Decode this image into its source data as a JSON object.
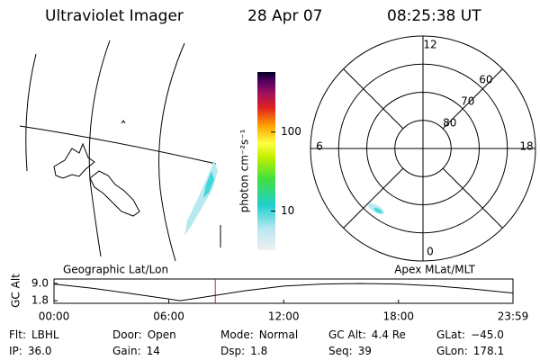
{
  "header": {
    "title": "Ultraviolet Imager",
    "date": "28 Apr 07",
    "time": "08:25:38 UT"
  },
  "colorbar": {
    "label": "photon cm⁻²s⁻¹",
    "scale": "log",
    "lim": [
      3.2,
      575
    ],
    "ticks": [
      10,
      100
    ]
  },
  "polar": {
    "lat_lim": [
      50,
      90
    ],
    "lat_rings": [
      60,
      70,
      80
    ],
    "mlt_labels": [
      0,
      6,
      12,
      18
    ]
  },
  "altitude": {
    "title_left": "Geographic Lat/Lon",
    "title_right": "Apex MLat/MLT",
    "ylabel": "GC Alt",
    "x": [
      0,
      2,
      4,
      6,
      6.6,
      8,
      10,
      12,
      14,
      16,
      18,
      20,
      22,
      23.98
    ],
    "values": [
      8.8,
      7.0,
      4.8,
      2.5,
      1.8,
      3.5,
      6.0,
      7.9,
      8.8,
      9.0,
      8.8,
      8.0,
      6.6,
      5.0
    ],
    "xlim": [
      0,
      23.983
    ],
    "ylim": [
      0.7,
      10.9
    ],
    "yticks": [
      1.8,
      {
        "value": 9,
        "label": "9.0"
      }
    ],
    "xticks": [
      {
        "value": 0,
        "label": "00:00"
      },
      {
        "value": 6,
        "label": "06:00"
      },
      {
        "value": 12,
        "label": "12:00"
      },
      {
        "value": 18,
        "label": "18:00"
      },
      {
        "value": 23.983,
        "label": "23:59"
      }
    ],
    "marker": 8.4272,
    "line_color": "#000000",
    "marker_color": "#cc2222"
  },
  "footer": [
    {
      "label": "Flt:",
      "value": "LBHL"
    },
    {
      "label": "Door:",
      "value": "Open"
    },
    {
      "label": "Mode:",
      "value": "Normal"
    },
    {
      "label": "GC Alt:",
      "value": "4.4 Re"
    },
    {
      "label": "GLat:",
      "value": "−45.0"
    },
    {
      "label": "IP:",
      "value": "36.0"
    },
    {
      "label": "Gain:",
      "value": "14"
    },
    {
      "label": "Dsp:",
      "value": "1.8"
    },
    {
      "label": "Seq:",
      "value": "39"
    },
    {
      "label": "GLon:",
      "value": "178.1"
    }
  ]
}
